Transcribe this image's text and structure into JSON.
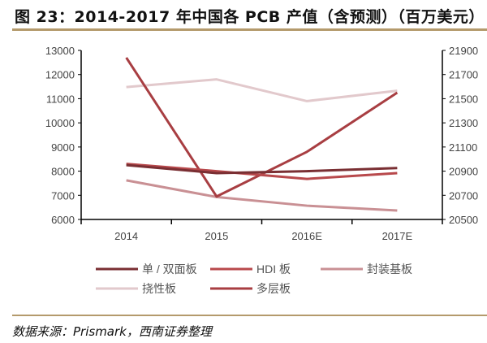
{
  "title": "图 23：2014-2017 年中国各 PCB 产值（含预测）（百万美元）",
  "source": "数据来源：Prismark，西南证券整理",
  "chart_data": {
    "type": "line",
    "title": "2014-2017 年中国各 PCB 产值（含预测）（百万美元）",
    "categories": [
      "2014",
      "2015",
      "2016E",
      "2017E"
    ],
    "y_left": {
      "range": [
        6000,
        13000
      ],
      "ticks": [
        "6000",
        "7000",
        "8000",
        "9000",
        "10000",
        "11000",
        "12000",
        "13000"
      ]
    },
    "y_right": {
      "range": [
        20500,
        21900
      ],
      "ticks": [
        "20500",
        "20700",
        "20900",
        "21100",
        "21300",
        "21500",
        "21700",
        "21900"
      ]
    },
    "grid": false,
    "legend_position": "bottom",
    "series": [
      {
        "name": "单 / 双面板",
        "axis": "left",
        "color": "#7a2f33",
        "values": [
          8250,
          7920,
          8000,
          8130
        ]
      },
      {
        "name": "HDI 板",
        "axis": "left",
        "color": "#b8494c",
        "values": [
          8300,
          8000,
          7680,
          7920
        ]
      },
      {
        "name": "封装基板",
        "axis": "left",
        "color": "#c99094",
        "values": [
          7620,
          6930,
          6570,
          6370
        ]
      },
      {
        "name": "挠性板",
        "axis": "left",
        "color": "#e2c9cc",
        "values": [
          11480,
          11800,
          10900,
          11330
        ]
      },
      {
        "name": "多层板",
        "axis": "right",
        "color": "#a83e42",
        "values": [
          21840,
          20690,
          21060,
          21550
        ]
      }
    ]
  }
}
